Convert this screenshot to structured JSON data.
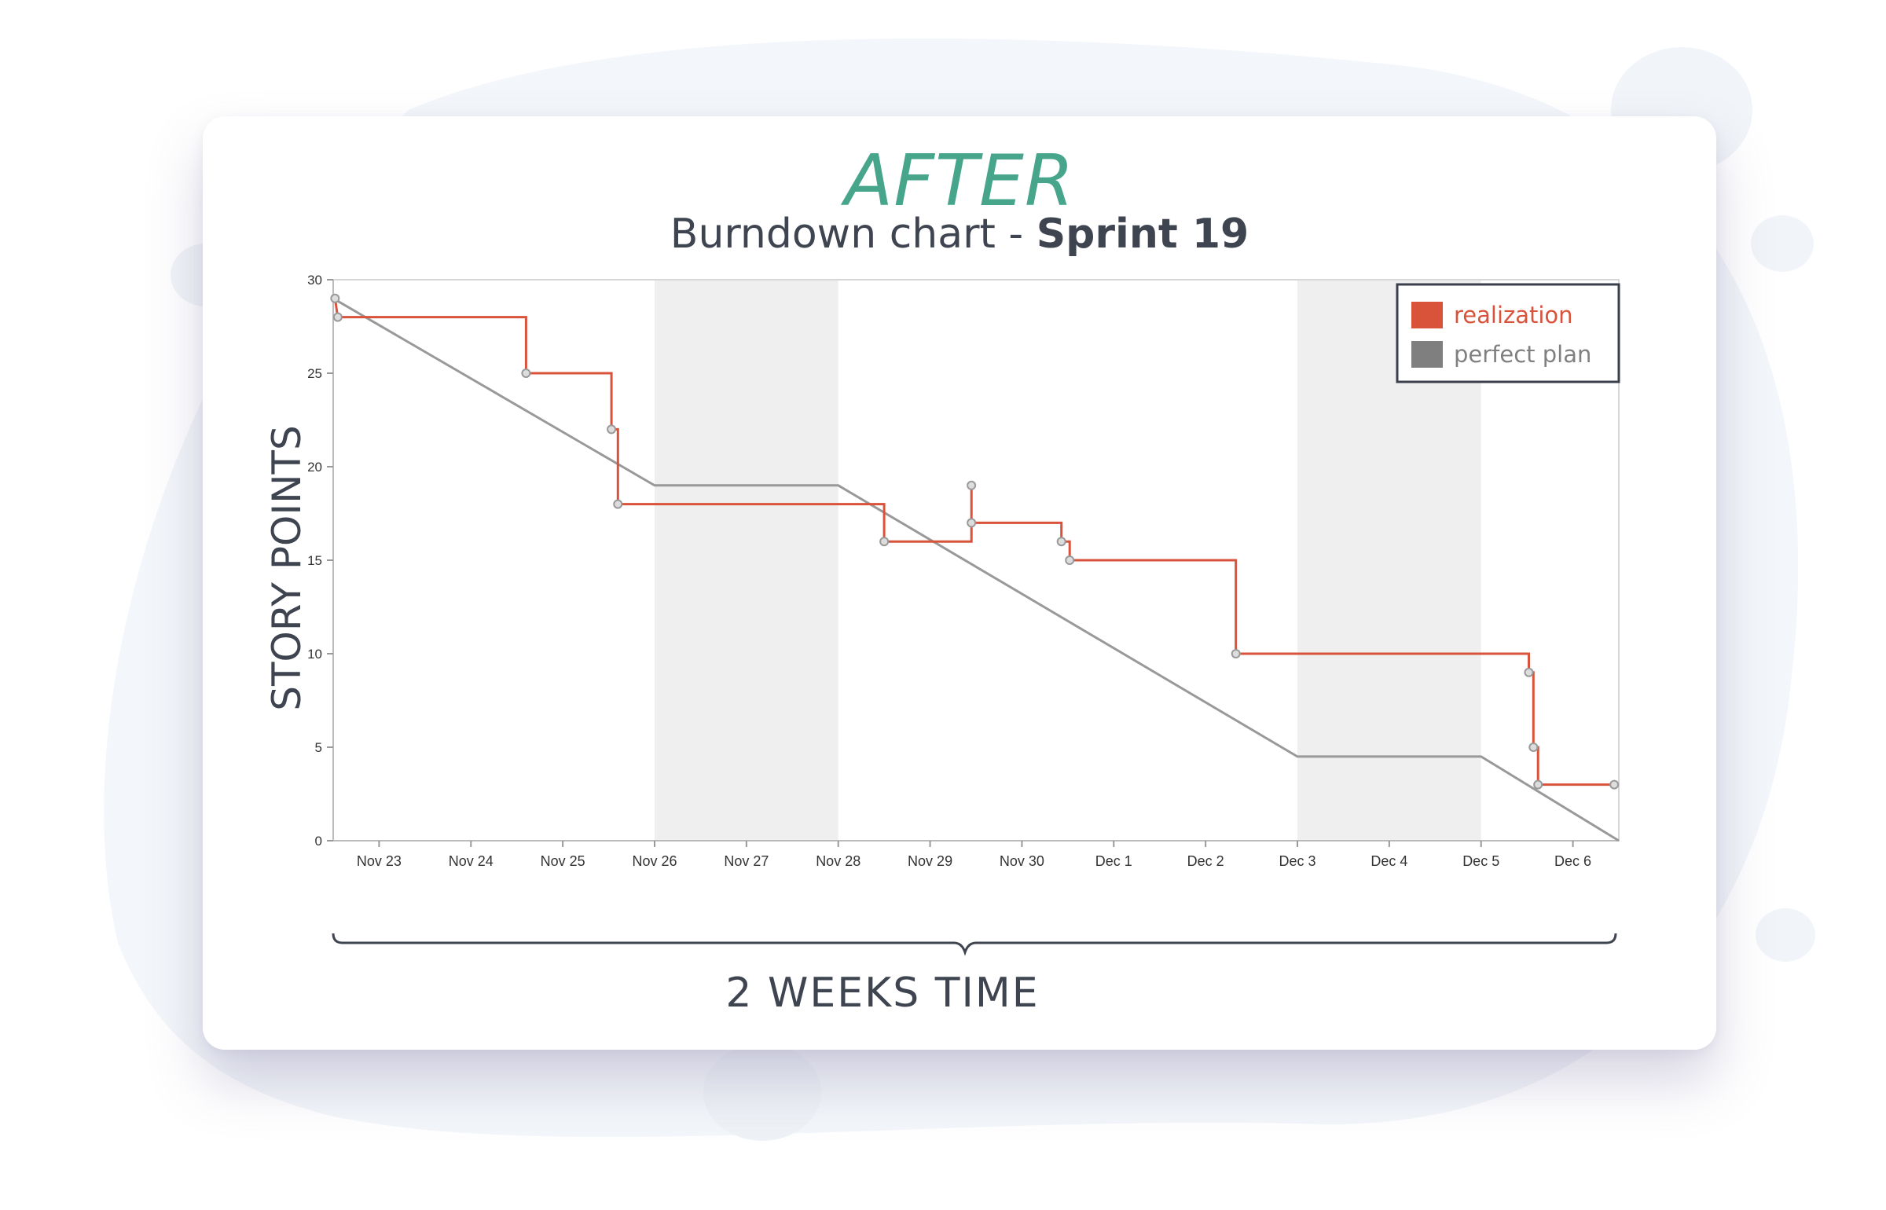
{
  "header": {
    "heading": "AFTER",
    "subtitle_prefix": "Burndown chart - ",
    "subtitle_bold": "Sprint 19"
  },
  "colors": {
    "heading": "#46a58a",
    "realization": "#d9533b",
    "perfect_plan": "#999999",
    "weekend_band": "#efefef"
  },
  "bracket_label": "2 WEEKS TIME",
  "chart_data": {
    "type": "line",
    "title": "Burndown chart - Sprint 19",
    "xlabel": "2 WEEKS TIME",
    "ylabel": "STORY POINTS",
    "x_domain": [
      22.5,
      36.5
    ],
    "ylim": [
      0,
      30
    ],
    "yticks": [
      0,
      5,
      10,
      15,
      20,
      25,
      30
    ],
    "xtick_labels": [
      "Nov 23",
      "Nov 24",
      "Nov 25",
      "Nov 26",
      "Nov 27",
      "Nov 28",
      "Nov 29",
      "Nov 30",
      "Dec 1",
      "Dec 2",
      "Dec 3",
      "Dec 4",
      "Dec 5",
      "Dec 6"
    ],
    "xtick_values": [
      23,
      24,
      25,
      26,
      27,
      28,
      29,
      30,
      31,
      32,
      33,
      34,
      35,
      36
    ],
    "x_unit_note": "day of sprint, Nov 23 = 23 ... Dec 6 = 36",
    "weekend_bands": [
      [
        26,
        28
      ],
      [
        33,
        35
      ]
    ],
    "legend": {
      "position": "top-right",
      "entries": [
        "realization",
        "perfect plan"
      ]
    },
    "series": [
      {
        "name": "realization",
        "color": "#d9533b",
        "points": [
          [
            22.52,
            29
          ],
          [
            22.55,
            28
          ],
          [
            24.6,
            28
          ],
          [
            24.6,
            25
          ],
          [
            25.53,
            25
          ],
          [
            25.53,
            22
          ],
          [
            25.6,
            22
          ],
          [
            25.6,
            18
          ],
          [
            28.5,
            18
          ],
          [
            28.5,
            16
          ],
          [
            29.45,
            16
          ],
          [
            29.45,
            19
          ],
          [
            29.45,
            17
          ],
          [
            30.43,
            17
          ],
          [
            30.43,
            16
          ],
          [
            30.52,
            16
          ],
          [
            30.52,
            15
          ],
          [
            32.33,
            15
          ],
          [
            32.33,
            10
          ],
          [
            35.52,
            10
          ],
          [
            35.52,
            9
          ],
          [
            35.57,
            9
          ],
          [
            35.57,
            5
          ],
          [
            35.62,
            5
          ],
          [
            35.62,
            3
          ],
          [
            36.45,
            3
          ]
        ],
        "markers": [
          [
            22.52,
            29
          ],
          [
            22.55,
            28
          ],
          [
            24.6,
            25
          ],
          [
            25.53,
            22
          ],
          [
            25.6,
            18
          ],
          [
            28.5,
            16
          ],
          [
            29.45,
            19
          ],
          [
            29.45,
            17
          ],
          [
            30.43,
            16
          ],
          [
            30.52,
            15
          ],
          [
            32.33,
            10
          ],
          [
            35.52,
            9
          ],
          [
            35.57,
            5
          ],
          [
            35.62,
            3
          ],
          [
            36.45,
            3
          ]
        ]
      },
      {
        "name": "perfect plan",
        "color": "#999999",
        "points": [
          [
            22.5,
            29
          ],
          [
            26,
            19
          ],
          [
            28,
            19
          ],
          [
            33,
            4.5
          ],
          [
            35,
            4.5
          ],
          [
            36.5,
            0
          ]
        ]
      }
    ]
  }
}
